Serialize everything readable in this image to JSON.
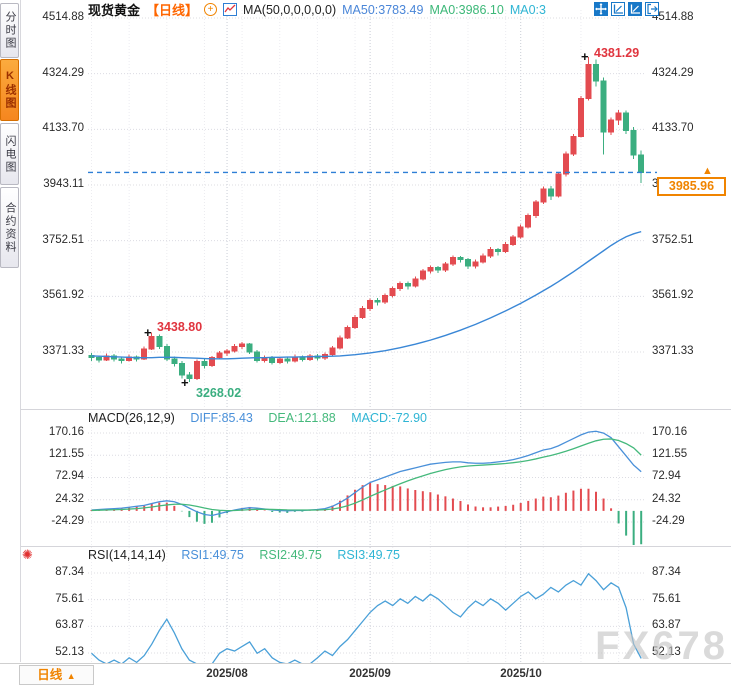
{
  "window": {
    "watermark": "FX678"
  },
  "colors": {
    "up": "#e34b50",
    "down": "#3bae80",
    "ma": "#3a87d6",
    "diff": "#4a90d9",
    "dea": "#45b97c",
    "macd_text": "#2fb5d4",
    "rsi": "#4aa0d8",
    "accent_orange": "#f08400",
    "dashed_line": "#2e7fd6",
    "grid_h": "#dcdce2",
    "grid_week": "#ececf0",
    "grid_month": "#c9cdd6"
  },
  "sidebar": {
    "tabs": [
      {
        "label": "分时图",
        "active": false
      },
      {
        "label": "K线图",
        "active": true
      },
      {
        "label": "闪电图",
        "active": false
      },
      {
        "label": "合约资料",
        "active": false
      }
    ]
  },
  "header": {
    "symbol": "现货黄金",
    "period": "【日线】",
    "add_icon_char": "+",
    "indicator": "MA(50,0,0,0,0,0)",
    "ma50": "MA50:3783.49",
    "ma0a": "MA0:3986.10",
    "ma0b": "MA0:3",
    "toolbar_icons": [
      "pan-crosshair-icon",
      "axis-zoom-icon",
      "axis-zoom-active-icon",
      "exit-chart-icon"
    ]
  },
  "main_chart": {
    "current_price_label": "3985.96",
    "marker_arrow": "▲",
    "cross_marker": "+",
    "high_annotation": "4381.29",
    "mid_annotation": "3438.80",
    "low_annotation": "3268.02"
  },
  "macd_panel": {
    "title": "MACD(26,12,9)",
    "diff_label": "DIFF:85.43",
    "dea_label": "DEA:121.88",
    "macd_label": "MACD:-72.90"
  },
  "rsi_panel": {
    "title": "RSI(14,14,14)",
    "icon_char": "✺",
    "rsi1_label": "RSI1:49.75",
    "rsi2_label": "RSI2:49.75",
    "rsi3_label": "RSI3:49.75"
  },
  "bottom": {
    "period_button": "日线",
    "period_button_arrow": "▲",
    "dates": [
      "2025/08",
      "2025/09",
      "2025/10"
    ]
  },
  "chart_data": [
    {
      "type": "candlestick",
      "title": "现货黄金 日线",
      "x_labels": [
        "2025/08",
        "2025/09",
        "2025/10"
      ],
      "month_indices": [
        18,
        37,
        57
      ],
      "y_ticks": [
        "4514.88",
        "4324.29",
        "4133.70",
        "3943.11",
        "3752.51",
        "3561.92",
        "3371.33"
      ],
      "ylim": [
        3268.02,
        4514.88
      ],
      "current_price": 3985.96,
      "candles": [
        [
          3360,
          3368,
          3340,
          3352
        ],
        [
          3352,
          3360,
          3336,
          3344
        ],
        [
          3344,
          3366,
          3340,
          3358
        ],
        [
          3358,
          3364,
          3338,
          3348
        ],
        [
          3348,
          3356,
          3332,
          3342
        ],
        [
          3342,
          3362,
          3338,
          3355
        ],
        [
          3355,
          3360,
          3338,
          3348
        ],
        [
          3348,
          3390,
          3344,
          3382
        ],
        [
          3382,
          3438.8,
          3378,
          3425
        ],
        [
          3425,
          3432,
          3382,
          3390
        ],
        [
          3390,
          3398,
          3340,
          3348
        ],
        [
          3348,
          3356,
          3322,
          3332
        ],
        [
          3332,
          3340,
          3280,
          3292
        ],
        [
          3292,
          3302,
          3268.02,
          3280
        ],
        [
          3280,
          3345,
          3276,
          3338
        ],
        [
          3338,
          3348,
          3315,
          3325
        ],
        [
          3325,
          3358,
          3320,
          3352
        ],
        [
          3352,
          3375,
          3348,
          3368
        ],
        [
          3368,
          3382,
          3358,
          3375
        ],
        [
          3375,
          3398,
          3370,
          3390
        ],
        [
          3390,
          3405,
          3382,
          3398
        ],
        [
          3398,
          3402,
          3365,
          3372
        ],
        [
          3372,
          3378,
          3335,
          3342
        ],
        [
          3342,
          3360,
          3336,
          3352
        ],
        [
          3352,
          3358,
          3328,
          3336
        ],
        [
          3336,
          3355,
          3330,
          3348
        ],
        [
          3348,
          3354,
          3332,
          3340
        ],
        [
          3340,
          3362,
          3336,
          3355
        ],
        [
          3355,
          3360,
          3338,
          3345
        ],
        [
          3345,
          3365,
          3340,
          3358
        ],
        [
          3358,
          3364,
          3342,
          3350
        ],
        [
          3350,
          3370,
          3344,
          3362
        ],
        [
          3362,
          3392,
          3356,
          3385
        ],
        [
          3385,
          3428,
          3380,
          3420
        ],
        [
          3420,
          3462,
          3415,
          3455
        ],
        [
          3455,
          3498,
          3450,
          3490
        ],
        [
          3490,
          3528,
          3485,
          3520
        ],
        [
          3520,
          3555,
          3512,
          3548
        ],
        [
          3548,
          3556,
          3530,
          3542
        ],
        [
          3542,
          3572,
          3536,
          3565
        ],
        [
          3565,
          3595,
          3558,
          3588
        ],
        [
          3588,
          3612,
          3580,
          3605
        ],
        [
          3605,
          3612,
          3585,
          3598
        ],
        [
          3598,
          3630,
          3592,
          3622
        ],
        [
          3622,
          3655,
          3616,
          3648
        ],
        [
          3648,
          3668,
          3640,
          3660
        ],
        [
          3660,
          3666,
          3642,
          3652
        ],
        [
          3652,
          3680,
          3646,
          3672
        ],
        [
          3672,
          3702,
          3665,
          3695
        ],
        [
          3695,
          3700,
          3678,
          3688
        ],
        [
          3688,
          3694,
          3655,
          3665
        ],
        [
          3665,
          3688,
          3658,
          3680
        ],
        [
          3680,
          3708,
          3674,
          3700
        ],
        [
          3700,
          3730,
          3694,
          3722
        ],
        [
          3722,
          3728,
          3702,
          3715
        ],
        [
          3715,
          3748,
          3710,
          3740
        ],
        [
          3740,
          3772,
          3735,
          3765
        ],
        [
          3765,
          3808,
          3760,
          3800
        ],
        [
          3800,
          3845,
          3795,
          3838
        ],
        [
          3838,
          3892,
          3830,
          3885
        ],
        [
          3885,
          3938,
          3878,
          3930
        ],
        [
          3930,
          3940,
          3892,
          3905
        ],
        [
          3905,
          3988,
          3900,
          3980
        ],
        [
          3980,
          4058,
          3972,
          4050
        ],
        [
          4050,
          4118,
          4042,
          4110
        ],
        [
          4110,
          4248,
          4105,
          4240
        ],
        [
          4240,
          4381.29,
          4232,
          4355
        ],
        [
          4355,
          4372,
          4280,
          4300
        ],
        [
          4300,
          4312,
          4048,
          4125
        ],
        [
          4125,
          4175,
          4115,
          4165
        ],
        [
          4165,
          4200,
          4148,
          4190
        ],
        [
          4190,
          4198,
          4118,
          4130
        ],
        [
          4130,
          4142,
          4032,
          4045
        ],
        [
          4045,
          4062,
          3950,
          3985.96
        ]
      ],
      "ma50": [
        3358,
        3357,
        3356,
        3355,
        3354,
        3353,
        3352,
        3352,
        3352,
        3353,
        3353,
        3353,
        3352,
        3351,
        3350,
        3349,
        3348,
        3348,
        3348,
        3349,
        3350,
        3351,
        3352,
        3352,
        3353,
        3353,
        3354,
        3354,
        3355,
        3355,
        3356,
        3356,
        3357,
        3358,
        3360,
        3362,
        3365,
        3368,
        3372,
        3376,
        3381,
        3386,
        3392,
        3398,
        3405,
        3412,
        3420,
        3428,
        3437,
        3446,
        3456,
        3466,
        3477,
        3488,
        3500,
        3512,
        3525,
        3538,
        3552,
        3566,
        3581,
        3596,
        3612,
        3629,
        3646,
        3664,
        3682,
        3700,
        3718,
        3736,
        3752,
        3766,
        3776,
        3783.49
      ],
      "annotations": [
        {
          "text": "4381.29",
          "price": 4381.29,
          "index": 66,
          "placement": "above",
          "color": "#e0353f"
        },
        {
          "text": "3438.80",
          "price": 3438.8,
          "index": 8,
          "placement": "above",
          "color": "#e0353f"
        },
        {
          "text": "3268.02",
          "price": 3268.02,
          "index": 13,
          "placement": "below",
          "color": "#3bae80"
        }
      ]
    },
    {
      "type": "bar",
      "title": "MACD(26,12,9)",
      "y_ticks": [
        "170.16",
        "121.55",
        "72.94",
        "24.32",
        "-24.29"
      ],
      "series": [
        {
          "name": "DIFF",
          "values": [
            2,
            3,
            4,
            5,
            6,
            8,
            10,
            12,
            16,
            20,
            22,
            20,
            14,
            6,
            -2,
            -8,
            -10,
            -6,
            -2,
            2,
            5,
            7,
            6,
            4,
            2,
            1,
            0,
            1,
            1,
            2,
            3,
            5,
            10,
            18,
            28,
            40,
            52,
            62,
            68,
            74,
            80,
            86,
            90,
            94,
            98,
            102,
            104,
            106,
            107,
            107,
            105,
            104,
            104,
            105,
            107,
            109,
            112,
            116,
            121,
            127,
            133,
            136,
            142,
            150,
            158,
            166,
            172,
            174,
            170,
            160,
            140,
            120,
            100,
            85.43
          ]
        },
        {
          "name": "DEA",
          "values": [
            1,
            1.5,
            2,
            2.5,
            3,
            4,
            5,
            6.5,
            8.5,
            11,
            13,
            14.5,
            14.5,
            12.8,
            9.8,
            6.2,
            3,
            1.2,
            0.5,
            0.8,
            1.7,
            2.7,
            3.4,
            3.5,
            3.2,
            2.8,
            2.2,
            2,
            1.8,
            1.8,
            2,
            2.6,
            4.1,
            6.9,
            11.1,
            16.9,
            23.9,
            31.5,
            38.8,
            45.8,
            52.7,
            59.3,
            65.5,
            71.2,
            76.5,
            81.6,
            86.1,
            90.1,
            93.5,
            96.2,
            98,
            99.2,
            100.1,
            101.1,
            102.3,
            103.6,
            105.3,
            107.4,
            110.1,
            113.5,
            117.4,
            121.1,
            125.3,
            130.2,
            135.8,
            141.8,
            147.8,
            153.1,
            156.5,
            157.2,
            153.7,
            147,
            137.6,
            121.88
          ]
        },
        {
          "name": "MACD",
          "values": [
            2,
            3,
            4,
            5,
            6,
            8,
            10,
            11,
            15,
            18,
            18,
            11,
            -1,
            -13.6,
            -23.6,
            -28.4,
            -26,
            -14.4,
            -5,
            2.4,
            6.6,
            8.6,
            5.2,
            1,
            -2.4,
            -3.6,
            -4.4,
            -2,
            -1.6,
            0.4,
            2,
            4.8,
            11.8,
            22.2,
            33.8,
            46.2,
            56.2,
            61,
            58.4,
            56.4,
            54.6,
            53.4,
            49,
            45.6,
            43,
            40.8,
            35.8,
            31.8,
            27,
            21.6,
            14,
            9.6,
            7.8,
            7.8,
            9.4,
            10.8,
            13.4,
            17.2,
            21.8,
            27,
            31.2,
            29.8,
            33.4,
            39.6,
            44.4,
            48.4,
            48.4,
            41.8,
            27,
            5.6,
            -27.4,
            -54,
            -75.2,
            -72.9
          ]
        }
      ]
    },
    {
      "type": "line",
      "title": "RSI(14,14,14)",
      "y_ticks": [
        "87.34",
        "75.61",
        "63.87",
        "52.13"
      ],
      "series": [
        {
          "name": "RSI1",
          "values": [
            52,
            49,
            47,
            49,
            46,
            50,
            48,
            51,
            56,
            62,
            67,
            61,
            54,
            49,
            46,
            44,
            47,
            52,
            54,
            53,
            55,
            57,
            52,
            54,
            50,
            48,
            46,
            49,
            45,
            47,
            50,
            53,
            51,
            55,
            58,
            62,
            66,
            70,
            73,
            75,
            73,
            76,
            74,
            77,
            75,
            78,
            76,
            73,
            70,
            68,
            72,
            75,
            73,
            76,
            74,
            71,
            74,
            77,
            79,
            76,
            78,
            81,
            79,
            82,
            84,
            82,
            87,
            84,
            80,
            83,
            81,
            72,
            56,
            49.75
          ]
        }
      ]
    }
  ]
}
